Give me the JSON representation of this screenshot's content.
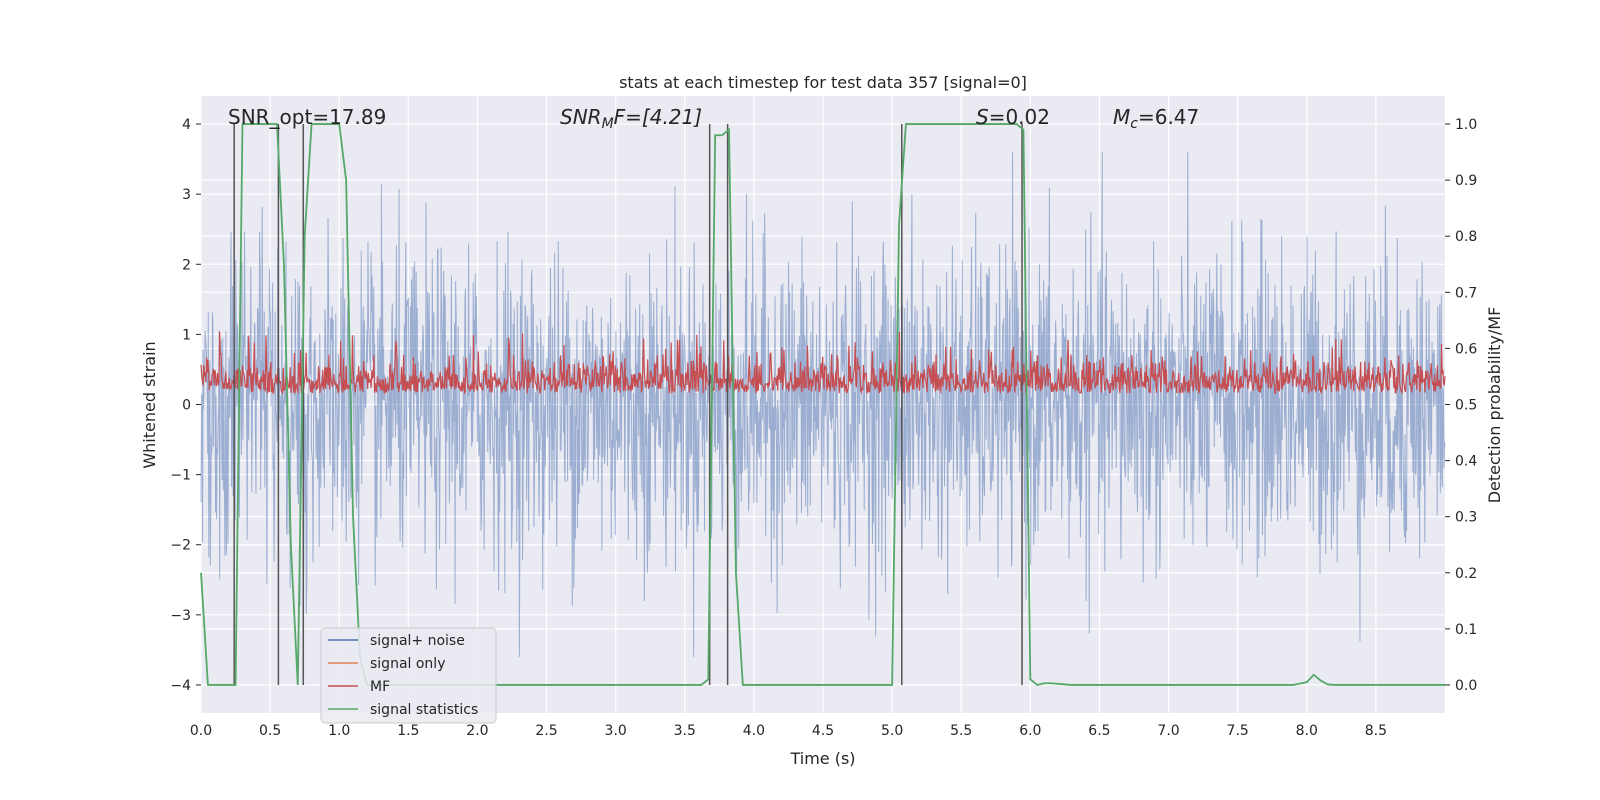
{
  "chart_data": {
    "type": "line",
    "title": "stats at each timestep for test data 357 [signal=0]",
    "xlabel": "Time (s)",
    "ylabel": "Whitened strain",
    "y2label": "Detection probability/MF",
    "xlim": [
      0,
      9.0
    ],
    "ylim": [
      -4.4,
      4.4
    ],
    "y2lim": [
      -0.05,
      1.05
    ],
    "x_ticks": [
      0.0,
      0.5,
      1.0,
      1.5,
      2.0,
      2.5,
      3.0,
      3.5,
      4.0,
      4.5,
      5.0,
      5.5,
      6.0,
      6.5,
      7.0,
      7.5,
      8.0,
      8.5
    ],
    "x_tick_labels": [
      "0.0",
      "0.5",
      "1.0",
      "1.5",
      "2.0",
      "2.5",
      "3.0",
      "3.5",
      "4.0",
      "4.5",
      "5.0",
      "5.5",
      "6.0",
      "6.5",
      "7.0",
      "7.5",
      "8.0",
      "8.5"
    ],
    "y_ticks": [
      -4,
      -3,
      -2,
      -1,
      0,
      1,
      2,
      3,
      4
    ],
    "y_tick_labels": [
      "−4",
      "−3",
      "−2",
      "−1",
      "0",
      "1",
      "2",
      "3",
      "4"
    ],
    "y2_ticks": [
      0.0,
      0.1,
      0.2,
      0.3,
      0.4,
      0.5,
      0.6,
      0.7,
      0.8,
      0.9,
      1.0
    ],
    "y2_tick_labels": [
      "0.0",
      "0.1",
      "0.2",
      "0.3",
      "0.4",
      "0.5",
      "0.6",
      "0.7",
      "0.8",
      "0.9",
      "1.0"
    ],
    "grid": true,
    "legend_position": "lower-left",
    "annotations": {
      "snr_opt": "SNR_opt=17.89",
      "snr_mf_name": "SNR",
      "snr_mf_sub": "M",
      "snr_mf_rest": "F=[4.21]",
      "s_name": "S",
      "s_rest": "=0.02",
      "mc_name": "M",
      "mc_sub": "c",
      "mc_rest": "=6.47"
    },
    "series": [
      {
        "name": "signal+ noise",
        "axis": "left",
        "color": "#4c72b0",
        "description_values": "dense whitened noise, amplitude mostly within ±2.5, peaks to about ±3.5"
      },
      {
        "name": "signal only",
        "axis": "left",
        "color": "#dd8452",
        "values": []
      },
      {
        "name": "MF",
        "axis": "right",
        "color": "#c44e52",
        "baseline": 0.5,
        "typical_max": 0.6,
        "peak_max": 0.63
      },
      {
        "name": "signal statistics",
        "axis": "right",
        "color": "#55a868",
        "x": [
          0.0,
          0.05,
          0.1,
          0.15,
          0.2,
          0.25,
          0.3,
          0.35,
          0.4,
          0.45,
          0.5,
          0.55,
          0.6,
          0.65,
          0.7,
          0.75,
          0.8,
          0.85,
          0.9,
          0.95,
          1.0,
          1.05,
          1.1,
          1.15,
          1.2,
          1.3,
          1.5,
          2.0,
          2.5,
          3.0,
          3.5,
          3.62,
          3.67,
          3.72,
          3.77,
          3.82,
          3.87,
          3.92,
          3.97,
          4.2,
          5.0,
          5.05,
          5.1,
          5.15,
          5.2,
          5.5,
          5.9,
          5.95,
          6.0,
          6.05,
          6.1,
          6.15,
          6.3,
          7.0,
          7.9,
          8.0,
          8.05,
          8.1,
          8.15,
          8.2,
          9.0
        ],
        "values": [
          0.2,
          0.0,
          0.0,
          0.0,
          0.0,
          0.0,
          1.0,
          1.0,
          1.0,
          1.0,
          1.0,
          1.0,
          0.75,
          0.25,
          0.0,
          0.8,
          1.0,
          1.0,
          1.0,
          1.0,
          1.0,
          0.9,
          0.3,
          0.05,
          0.0,
          0.0,
          0.0,
          0.0,
          0.0,
          0.0,
          0.0,
          0.0,
          0.01,
          0.98,
          0.98,
          0.99,
          0.2,
          0.0,
          0.0,
          0.0,
          0.0,
          0.82,
          1.0,
          1.0,
          1.0,
          1.0,
          1.0,
          0.99,
          0.01,
          0.0,
          0.003,
          0.003,
          0.0,
          0.0,
          0.0,
          0.005,
          0.018,
          0.008,
          0.001,
          0.0,
          0.0
        ]
      }
    ],
    "vertical_markers_x": [
      0.24,
      0.56,
      0.74,
      3.68,
      3.81,
      5.07,
      5.94
    ]
  },
  "legend": {
    "items": [
      {
        "label": "signal+ noise",
        "color": "#4c72b0"
      },
      {
        "label": "signal only",
        "color": "#dd8452"
      },
      {
        "label": "MF",
        "color": "#c44e52"
      },
      {
        "label": "signal statistics",
        "color": "#55a868"
      }
    ]
  }
}
